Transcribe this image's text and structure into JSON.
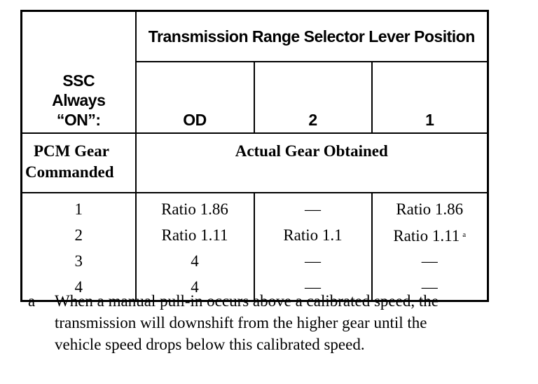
{
  "table": {
    "corner_label": [
      "SSC",
      "Always",
      "“ON”:"
    ],
    "group_header": "Transmission Range Selector Lever Position",
    "positions": [
      "OD",
      "2",
      "1"
    ],
    "row_header_label": [
      "PCM Gear",
      "Commanded"
    ],
    "subheader": "Actual Gear Obtained",
    "rows": [
      {
        "commanded": "1",
        "od": "Ratio 1.86",
        "two": "—",
        "one": "Ratio 1.86",
        "one_note": ""
      },
      {
        "commanded": "2",
        "od": "Ratio 1.11",
        "two": "Ratio 1.1",
        "one": "Ratio 1.11",
        "one_note": "a"
      },
      {
        "commanded": "3",
        "od": "4",
        "two": "—",
        "one": "—",
        "one_note": ""
      },
      {
        "commanded": "4",
        "od": "4",
        "two": "—",
        "one": "—",
        "one_note": ""
      }
    ]
  },
  "footnote": {
    "mark": "a",
    "text": "When a manual pull-in occurs above a calibrated speed, the transmission will downshift from the higher gear until the vehicle speed drops below this calibrated speed."
  }
}
